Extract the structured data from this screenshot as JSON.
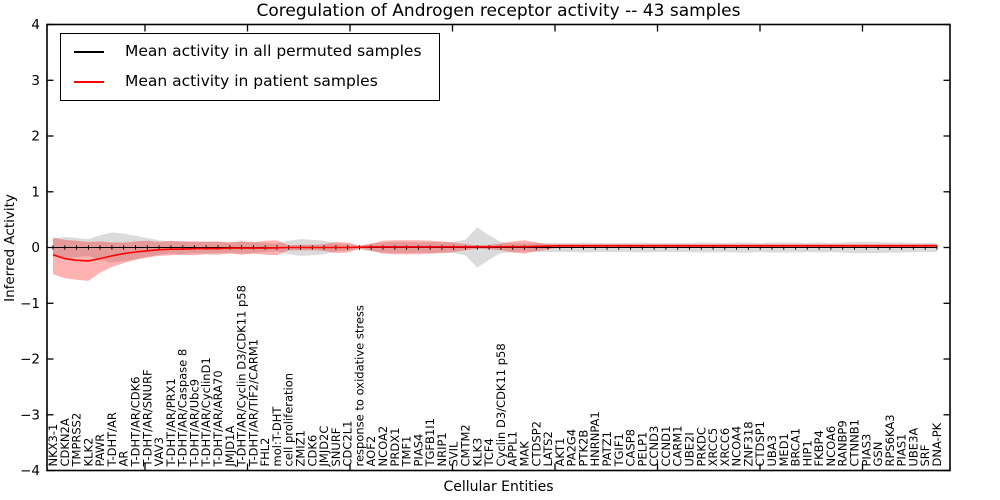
{
  "chart_data": {
    "type": "line",
    "title": "Coregulation of Androgen receptor activity -- 43 samples",
    "xlabel": "Cellular Entities",
    "ylabel": "Inferred Activity",
    "ylim": [
      -4,
      4
    ],
    "yticks": [
      4,
      3,
      2,
      1,
      0,
      -1,
      -2,
      -3,
      -4
    ],
    "yticklabels": [
      "4",
      "3",
      "2",
      "1",
      "0",
      "−1",
      "−2",
      "−3",
      "−4"
    ],
    "grid": false,
    "legend_position": "upper left",
    "entities": [
      "NKX3-1",
      "CDKN2A",
      "TMPRSS2",
      "KLK2",
      "PAWR",
      "T-DHT/AR",
      "AR",
      "T-DHT/AR/CDK6",
      "T-DHT/AR/SNURF",
      "VAV3",
      "T-DHT/AR/PRX1",
      "T-DHT/AR/Caspase 8",
      "T-DHT/AR/Ubc9",
      "T-DHT/AR/CyclinD1",
      "T-DHT/AR/ARA70",
      "JMJD1A",
      "T-DHT/AR/Cyclin D3/CDK11 p58",
      "T-DHT/AR/TIF2/CARM1",
      "FHL2",
      "mol:T-DHT",
      "cell proliferation",
      "ZMIZ1",
      "CDK6",
      "JMJD2C",
      "SNURF",
      "CDC2L1",
      "response to oxidative stress",
      "AOF2",
      "NCOA2",
      "PRDX1",
      "TMF1",
      "PIAS4",
      "TGFB1I1",
      "NRIP1",
      "SVIL",
      "CMTM2",
      "KLK3",
      "TCF4",
      "Cyclin D3/CDK11 p58",
      "APPL1",
      "MAK",
      "CTDSP2",
      "LATS2",
      "AKT1",
      "PA2G4",
      "PTK2B",
      "HNRNPA1",
      "PATZ1",
      "TGIF1",
      "CASP8",
      "PELP1",
      "CCND3",
      "CCND1",
      "CARM1",
      "UBE2I",
      "PRKDC",
      "XRCC5",
      "XRCC6",
      "NCOA4",
      "ZNF318",
      "CTDSP1",
      "UBA3",
      "MED1",
      "BRCA1",
      "HIP1",
      "FKBP4",
      "NCOA6",
      "RANBP9",
      "CTNNB1",
      "PIAS3",
      "GSN",
      "RPS6KA3",
      "PIAS1",
      "UBE3A",
      "SRF",
      "DNA-PK"
    ],
    "series": [
      {
        "name": "Mean activity in all permuted samples",
        "color": "#000000",
        "band_color": "#999999",
        "band_opacity": 0.35,
        "values": [
          0,
          0,
          0,
          0,
          0,
          0,
          0,
          0,
          0,
          0,
          0,
          0,
          0,
          0,
          0,
          0,
          0,
          0,
          0,
          0,
          0,
          0,
          0,
          0,
          0,
          0,
          0,
          0,
          0,
          0,
          0,
          0,
          0,
          0,
          0,
          0,
          0,
          0,
          0,
          0,
          0,
          0,
          0,
          0,
          0,
          0,
          0,
          0,
          0,
          0,
          0,
          0,
          0,
          0,
          0,
          0,
          0,
          0,
          0,
          0,
          0,
          0,
          0,
          0,
          0,
          0,
          0,
          0,
          0,
          0,
          0,
          0,
          0,
          0,
          0,
          0
        ],
        "band": [
          0.16,
          0.19,
          0.17,
          0.15,
          0.22,
          0.27,
          0.25,
          0.21,
          0.17,
          0.13,
          0.11,
          0.12,
          0.1,
          0.11,
          0.1,
          0.09,
          0.11,
          0.1,
          0.08,
          0.07,
          0.12,
          0.15,
          0.14,
          0.12,
          0.07,
          0.06,
          0.03,
          0.07,
          0.09,
          0.1,
          0.1,
          0.09,
          0.1,
          0.09,
          0.1,
          0.14,
          0.36,
          0.22,
          0.1,
          0.08,
          0.07,
          0.08,
          0.08,
          0.08,
          0.08,
          0.09,
          0.08,
          0.08,
          0.08,
          0.08,
          0.09,
          0.08,
          0.08,
          0.08,
          0.08,
          0.09,
          0.09,
          0.08,
          0.09,
          0.09,
          0.08,
          0.09,
          0.09,
          0.09,
          0.08,
          0.09,
          0.08,
          0.09,
          0.1,
          0.1,
          0.1,
          0.09,
          0.09,
          0.08,
          0.08,
          0.08
        ]
      },
      {
        "name": "Mean activity in patient samples",
        "color": "#ff0000",
        "band_color": "#ff0000",
        "band_opacity": 0.3,
        "values": [
          -0.13,
          -0.2,
          -0.23,
          -0.24,
          -0.2,
          -0.15,
          -0.11,
          -0.08,
          -0.06,
          -0.04,
          -0.03,
          -0.03,
          -0.02,
          -0.02,
          -0.02,
          -0.01,
          -0.01,
          -0.01,
          -0.01,
          -0.005,
          0,
          0,
          0,
          0,
          0,
          0,
          0.005,
          0.01,
          0.01,
          0.01,
          0.01,
          0.01,
          0.01,
          0.01,
          0.01,
          0.01,
          0.01,
          0.01,
          0.015,
          0.015,
          0.015,
          0.02,
          0.025,
          0.03,
          0.03,
          0.03,
          0.03,
          0.03,
          0.03,
          0.03,
          0.03,
          0.03,
          0.03,
          0.03,
          0.03,
          0.03,
          0.03,
          0.03,
          0.03,
          0.03,
          0.03,
          0.03,
          0.03,
          0.03,
          0.03,
          0.03,
          0.03,
          0.03,
          0.03,
          0.03,
          0.03,
          0.03,
          0.03,
          0.03,
          0.03,
          0.03
        ],
        "band_hi": [
          0.18,
          0.14,
          0.12,
          0.1,
          0.11,
          0.09,
          0.09,
          0.11,
          0.12,
          0.1,
          0.12,
          0.1,
          0.11,
          0.1,
          0.11,
          0.09,
          0.11,
          0.09,
          0.12,
          0.13,
          0.04,
          0.05,
          0.05,
          0.06,
          0.1,
          0.09,
          0.03,
          0.07,
          0.12,
          0.13,
          0.13,
          0.13,
          0.12,
          0.11,
          0.09,
          0.06,
          0.04,
          0.05,
          0.07,
          0.11,
          0.13,
          0.09,
          0.06,
          0.06,
          0.06,
          0.06,
          0.06,
          0.06,
          0.06,
          0.06,
          0.06,
          0.06,
          0.06,
          0.06,
          0.06,
          0.06,
          0.06,
          0.06,
          0.06,
          0.06,
          0.06,
          0.06,
          0.06,
          0.06,
          0.06,
          0.06,
          0.06,
          0.06,
          0.06,
          0.06,
          0.06,
          0.06,
          0.06,
          0.06,
          0.06,
          0.06
        ],
        "band_lo": [
          -0.48,
          -0.55,
          -0.58,
          -0.6,
          -0.45,
          -0.35,
          -0.28,
          -0.22,
          -0.18,
          -0.15,
          -0.14,
          -0.13,
          -0.14,
          -0.12,
          -0.13,
          -0.11,
          -0.13,
          -0.11,
          -0.13,
          -0.14,
          -0.05,
          -0.05,
          -0.05,
          -0.06,
          -0.1,
          -0.09,
          -0.02,
          -0.06,
          -0.11,
          -0.12,
          -0.12,
          -0.12,
          -0.11,
          -0.1,
          -0.08,
          -0.05,
          -0.02,
          -0.03,
          -0.05,
          -0.09,
          -0.11,
          -0.07,
          -0.03,
          0,
          0,
          0,
          0,
          0,
          0,
          0,
          0,
          0,
          0,
          0,
          0,
          0,
          0,
          0,
          0,
          0,
          0,
          0,
          0,
          0,
          0,
          0,
          0,
          0,
          0,
          0,
          0,
          0,
          0,
          0,
          0,
          0
        ]
      }
    ]
  }
}
